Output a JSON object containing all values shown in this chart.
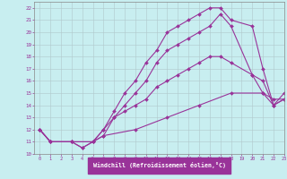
{
  "xlabel": "Windchill (Refroidissement éolien,°C)",
  "xlim": [
    -0.5,
    23
  ],
  "ylim": [
    10,
    22.5
  ],
  "xticks": [
    0,
    1,
    2,
    3,
    4,
    5,
    6,
    7,
    8,
    9,
    10,
    11,
    12,
    13,
    14,
    15,
    16,
    17,
    18,
    19,
    20,
    21,
    22,
    23
  ],
  "yticks": [
    10,
    11,
    12,
    13,
    14,
    15,
    16,
    17,
    18,
    19,
    20,
    21,
    22
  ],
  "bg_color": "#c8eef0",
  "grid_color": "#b0c8cc",
  "line_color": "#993399",
  "curves": [
    {
      "x": [
        0,
        1,
        3,
        5,
        6,
        7,
        8,
        9,
        10,
        11,
        12,
        13,
        14,
        15,
        16,
        17,
        18,
        20,
        21,
        22,
        23
      ],
      "y": [
        12,
        11,
        11,
        11,
        12,
        13.5,
        15,
        16,
        17.5,
        18.5,
        20,
        20.5,
        21,
        21.5,
        22,
        22,
        21,
        20.5,
        17,
        14,
        14.5
      ]
    },
    {
      "x": [
        0,
        1,
        3,
        4,
        5,
        6,
        7,
        8,
        9,
        10,
        11,
        12,
        13,
        14,
        15,
        16,
        17,
        18,
        20,
        21,
        22,
        23
      ],
      "y": [
        12,
        11,
        11,
        10.5,
        11,
        11.5,
        13,
        14,
        15,
        16,
        17.5,
        18.5,
        19,
        19.5,
        20,
        20.5,
        21.5,
        20.5,
        16.5,
        16,
        14,
        15
      ]
    },
    {
      "x": [
        0,
        1,
        3,
        5,
        6,
        7,
        8,
        9,
        10,
        11,
        12,
        13,
        14,
        15,
        16,
        17,
        18,
        20,
        21,
        22,
        23
      ],
      "y": [
        12,
        11,
        11,
        11,
        12,
        13,
        13.5,
        14,
        14.5,
        15.5,
        16,
        16.5,
        17,
        17.5,
        18,
        18,
        17.5,
        16.5,
        15,
        14.5,
        14.5
      ]
    },
    {
      "x": [
        0,
        1,
        3,
        4,
        5,
        6,
        9,
        12,
        15,
        18,
        21,
        22,
        23
      ],
      "y": [
        12,
        11,
        11,
        10.5,
        11,
        11.5,
        12,
        13,
        14,
        15,
        15,
        14,
        14.5
      ]
    }
  ]
}
